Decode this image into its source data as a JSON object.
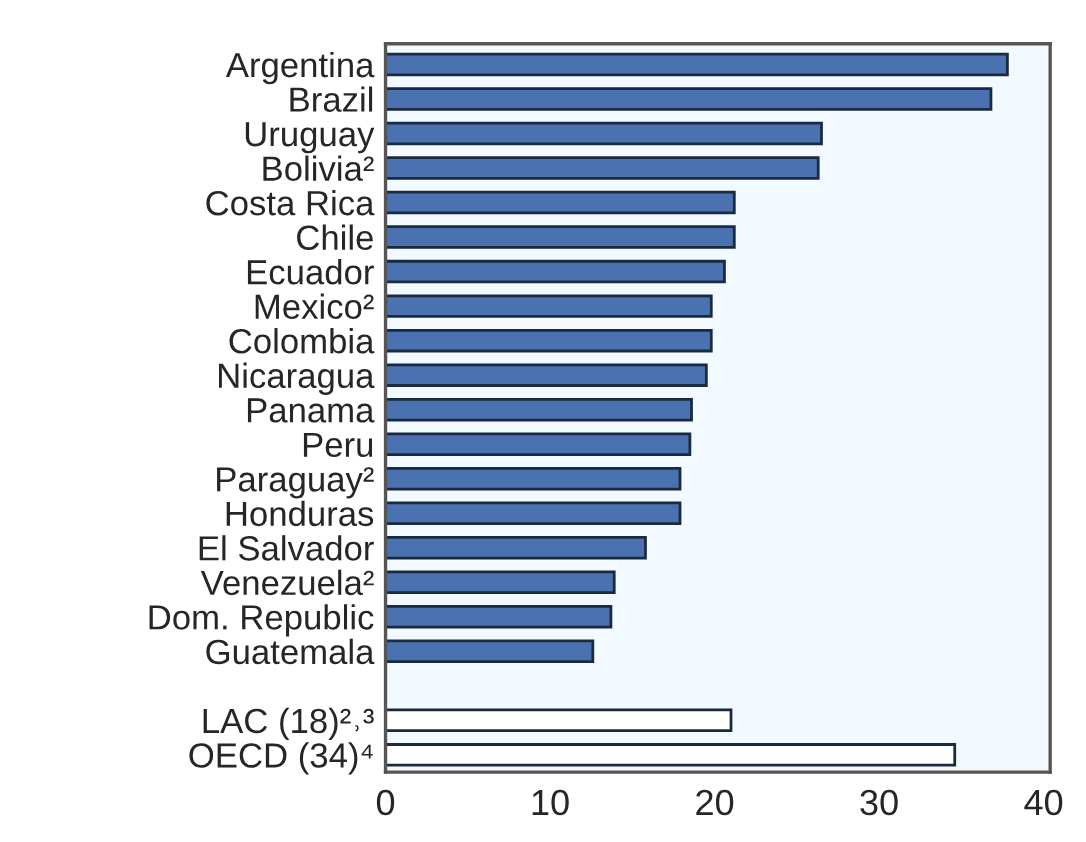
{
  "chart_data": {
    "type": "bar",
    "orientation": "horizontal",
    "categories": [
      "Argentina",
      "Brazil",
      "Uruguay",
      "Bolivia²",
      "Costa Rica",
      "Chile",
      "Ecuador",
      "Mexico²",
      "Colombia",
      "Nicaragua",
      "Panama",
      "Peru",
      "Paraguay²",
      "Honduras",
      "El Salvador",
      "Venezuela²",
      "Dom. Republic",
      "Guatemala",
      null,
      "LAC (18)²˒³",
      "OECD (34)⁴"
    ],
    "values": [
      37.8,
      36.8,
      26.5,
      26.3,
      21.2,
      21.2,
      20.6,
      19.8,
      19.8,
      19.5,
      18.6,
      18.5,
      17.9,
      17.9,
      15.8,
      13.9,
      13.7,
      12.6,
      null,
      21.0,
      34.6
    ],
    "colors": [
      "#4a72b0",
      "#4a72b0",
      "#4a72b0",
      "#4a72b0",
      "#4a72b0",
      "#4a72b0",
      "#4a72b0",
      "#4a72b0",
      "#4a72b0",
      "#4a72b0",
      "#4a72b0",
      "#4a72b0",
      "#4a72b0",
      "#4a72b0",
      "#4a72b0",
      "#4a72b0",
      "#4a72b0",
      "#4a72b0",
      "#4a72b0",
      "#ffffff",
      "#ffffff"
    ],
    "xlim": [
      0,
      40.4
    ],
    "xticks": [
      0,
      10,
      20,
      30,
      40
    ],
    "grid": false
  }
}
